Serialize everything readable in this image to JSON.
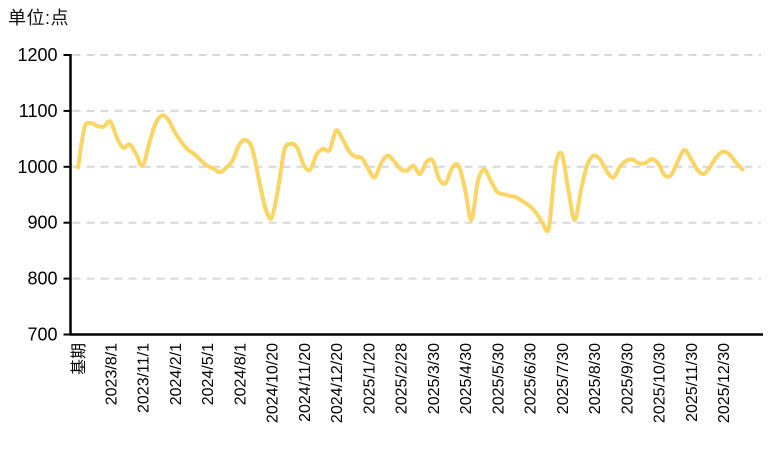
{
  "chart_data": {
    "type": "line",
    "title": "单位:点",
    "ylim": [
      700,
      1200
    ],
    "ytick_step": 100,
    "y_ticks": [
      "1200",
      "1100",
      "1000",
      "900",
      "800",
      "700"
    ],
    "grid": "horizontal-dashed",
    "legend": "none",
    "x_labels": [
      "基期",
      "2023/8/1",
      "2023/11/1",
      "2024/2/1",
      "2024/5/1",
      "2024/8/1",
      "2024/10/20",
      "2024/11/20",
      "2024/12/20",
      "2025/1/20",
      "2025/2/28",
      "2025/3/30",
      "2025/4/30",
      "2025/5/30",
      "2025/6/30",
      "2025/7/30",
      "2025/8/30",
      "2025/9/30",
      "2025/10/30",
      "2025/11/30",
      "2025/12/30"
    ],
    "label_every": 5,
    "series": [
      {
        "color": "#FBD564",
        "values": [
          999,
          1070,
          1078,
          1073,
          1072,
          1081,
          1053,
          1034,
          1040,
          1023,
          1002,
          1040,
          1077,
          1092,
          1084,
          1062,
          1045,
          1031,
          1023,
          1012,
          1002,
          997,
          990,
          999,
          1012,
          1040,
          1048,
          1033,
          980,
          928,
          908,
          960,
          1030,
          1041,
          1034,
          1003,
          995,
          1022,
          1032,
          1030,
          1065,
          1050,
          1028,
          1018,
          1016,
          996,
          981,
          1007,
          1020,
          1010,
          996,
          993,
          1002,
          987,
          1008,
          1011,
          978,
          971,
          998,
          1002,
          960,
          905,
          975,
          995,
          975,
          955,
          951,
          948,
          945,
          938,
          930,
          918,
          900,
          891,
          1000,
          1023,
          960,
          905,
          960,
          1005,
          1020,
          1012,
          992,
          981,
          1000,
          1011,
          1013,
          1006,
          1007,
          1014,
          1005,
          984,
          986,
          1010,
          1030,
          1015,
          995,
          987,
          1000,
          1018,
          1027,
          1022,
          1008,
          995
        ]
      }
    ]
  },
  "colors": {
    "line": "#FBD564",
    "grid": "#D7D7D7",
    "axis": "#000000",
    "text": "#000000",
    "background": "#FFFFFF"
  }
}
